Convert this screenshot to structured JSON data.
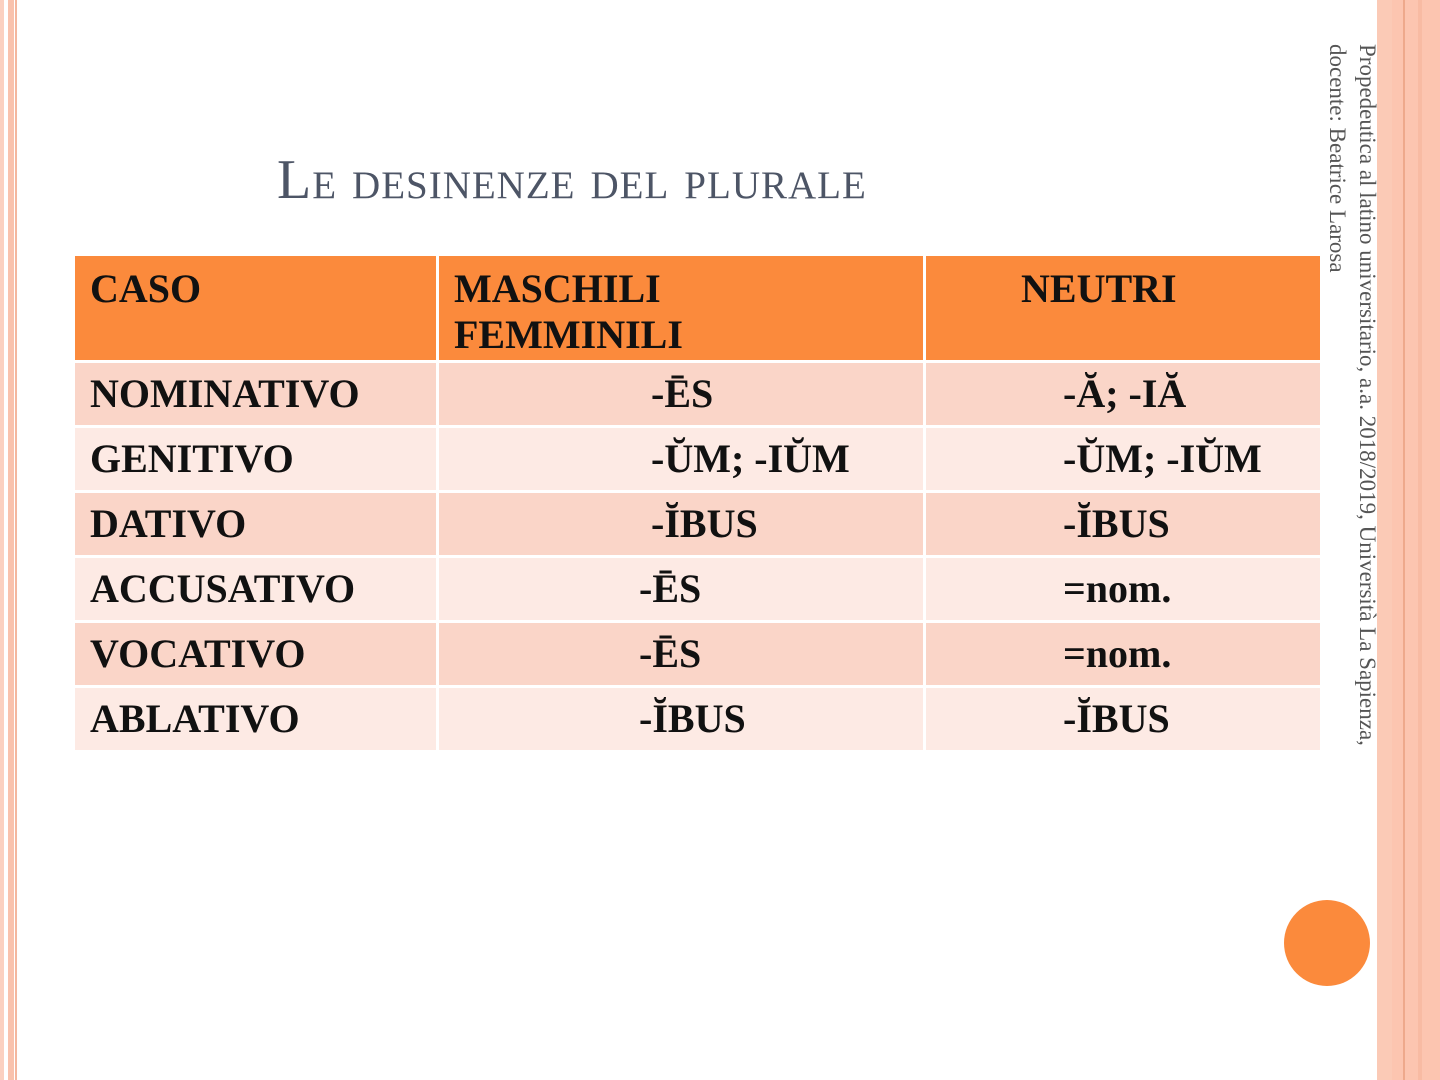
{
  "slide": {
    "title": "Le desinenze del plurale",
    "footer_vertical": {
      "line1": "Propedeutica al latino universitario, a.a. 2018/2019, Università La Sapienza,",
      "line2": "docente: Beatrice Larosa"
    },
    "colors": {
      "accent": "#fb8a3c",
      "row_dark": "#fad5c8",
      "row_light": "#fdeae4",
      "title": "#4d5566"
    }
  },
  "table": {
    "headers": [
      "CASO",
      "MASCHILI FEMMINILI",
      "NEUTRI"
    ],
    "rows": [
      [
        "NOMINATIVO",
        "-ĒS",
        "-Ă; -IĂ"
      ],
      [
        "GENITIVO",
        "-ŬM; -IŬM",
        "-ŬM; -IŬM"
      ],
      [
        "DATIVO",
        "-ĬBUS",
        "-ĬBUS"
      ],
      [
        "ACCUSATIVO",
        "-ĒS",
        "=nom."
      ],
      [
        "VOCATIVO",
        "-ĒS",
        "=nom."
      ],
      [
        "ABLATIVO",
        "-ĬBUS",
        "-ĬBUS"
      ]
    ]
  }
}
